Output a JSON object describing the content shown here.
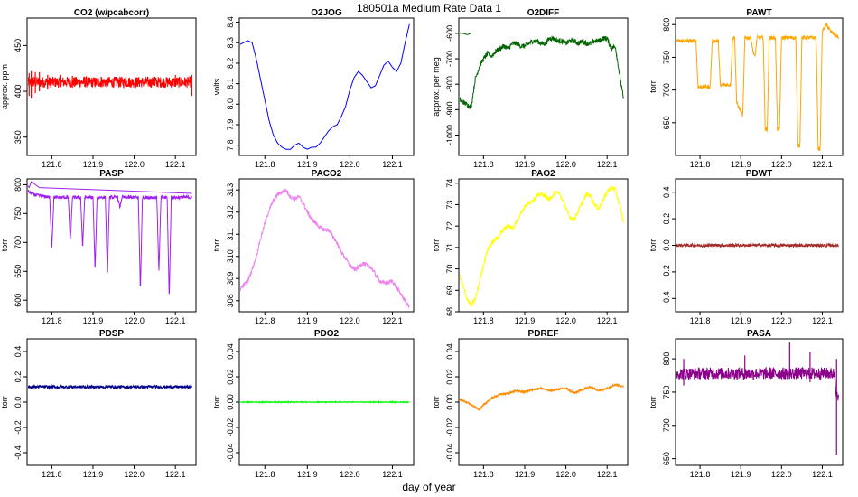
{
  "page": {
    "title": "180501a   Medium Rate Data 1",
    "xlabel": "day of year"
  },
  "chart_data": [
    {
      "type": "line",
      "title": "CO2 (w/pcabcorr)",
      "ylabel": "approx. ppm",
      "color": "#ff0000",
      "xlim": [
        121.74,
        122.15
      ],
      "ylim": [
        330,
        480
      ],
      "yticks": [
        350,
        400,
        450
      ],
      "yfmt": 0,
      "xticks": [
        121.8,
        121.9,
        122.0,
        122.1
      ],
      "x": [
        121.74,
        122.14
      ],
      "y": [
        410,
        410
      ],
      "noise": 6,
      "spikes": [
        [
          121.745,
          395,
          420
        ],
        [
          121.75,
          392,
          422
        ],
        [
          121.76,
          398,
          421
        ],
        [
          121.77,
          400,
          421
        ],
        [
          121.79,
          402,
          418
        ],
        [
          121.82,
          405,
          418
        ],
        [
          121.85,
          404,
          417
        ],
        [
          121.88,
          405,
          416
        ],
        [
          121.92,
          406,
          416
        ],
        [
          121.98,
          405,
          416
        ],
        [
          122.05,
          406,
          416
        ],
        [
          122.1,
          405,
          418
        ],
        [
          122.14,
          395,
          418
        ]
      ]
    },
    {
      "type": "line",
      "title": "O2JOG",
      "ylabel": "volts",
      "color": "#0000ff",
      "xlim": [
        121.74,
        122.15
      ],
      "ylim": [
        7.75,
        8.42
      ],
      "yticks": [
        7.8,
        7.9,
        8.0,
        8.1,
        8.2,
        8.3,
        8.4
      ],
      "yfmt": 1,
      "xticks": [
        121.8,
        121.9,
        122.0,
        122.1
      ],
      "x": [
        121.74,
        121.75,
        121.76,
        121.77,
        121.78,
        121.79,
        121.8,
        121.81,
        121.82,
        121.83,
        121.84,
        121.85,
        121.86,
        121.87,
        121.88,
        121.89,
        121.9,
        121.91,
        121.92,
        121.93,
        121.94,
        121.95,
        121.96,
        121.97,
        121.98,
        121.99,
        122.0,
        122.01,
        122.02,
        122.03,
        122.04,
        122.05,
        122.06,
        122.07,
        122.08,
        122.09,
        122.1,
        122.11,
        122.12,
        122.13,
        122.14
      ],
      "y": [
        8.29,
        8.3,
        8.31,
        8.3,
        8.22,
        8.12,
        8.02,
        7.92,
        7.85,
        7.81,
        7.79,
        7.78,
        7.78,
        7.8,
        7.81,
        7.79,
        7.78,
        7.79,
        7.79,
        7.81,
        7.84,
        7.87,
        7.89,
        7.9,
        7.94,
        7.99,
        8.07,
        8.13,
        8.16,
        8.14,
        8.11,
        8.08,
        8.09,
        8.14,
        8.19,
        8.21,
        8.18,
        8.16,
        8.2,
        8.3,
        8.39
      ],
      "noise": 0
    },
    {
      "type": "line",
      "title": "O2DIFF",
      "ylabel": "approx. per meg",
      "color": "#006400",
      "xlim": [
        121.74,
        122.15
      ],
      "ylim": [
        -1080,
        -540
      ],
      "yticks": [
        -1000,
        -900,
        -800,
        -700,
        -600
      ],
      "yfmt": 0,
      "xticks": [
        121.8,
        121.9,
        122.0,
        122.1
      ],
      "x": [
        121.74,
        121.75,
        121.76,
        121.77,
        121.78,
        121.79,
        121.8,
        121.81,
        121.82,
        121.83,
        121.84,
        121.85,
        121.86,
        121.87,
        121.88,
        121.89,
        121.9,
        121.91,
        121.92,
        121.93,
        121.94,
        121.95,
        121.96,
        121.97,
        121.98,
        121.99,
        122.0,
        122.01,
        122.02,
        122.03,
        122.04,
        122.05,
        122.06,
        122.07,
        122.08,
        122.09,
        122.1,
        122.11,
        122.12,
        122.13,
        122.14
      ],
      "y": [
        -860,
        -870,
        -880,
        -890,
        -780,
        -730,
        -700,
        -680,
        -690,
        -670,
        -660,
        -650,
        -660,
        -640,
        -640,
        -650,
        -650,
        -640,
        -630,
        -630,
        -640,
        -640,
        -620,
        -620,
        -630,
        -630,
        -640,
        -630,
        -630,
        -640,
        -630,
        -640,
        -640,
        -630,
        -630,
        -620,
        -620,
        -660,
        -650,
        -760,
        -860
      ],
      "noise": 10,
      "extra": [
        [
          121.74,
          -600
        ],
        [
          121.75,
          -600
        ],
        [
          121.76,
          -605
        ],
        [
          121.77,
          -600
        ]
      ]
    },
    {
      "type": "line",
      "title": "PAWT",
      "ylabel": "torr",
      "color": "#ffa500",
      "xlim": [
        121.74,
        122.15
      ],
      "ylim": [
        600,
        810
      ],
      "yticks": [
        650,
        700,
        750,
        800
      ],
      "yfmt": 0,
      "xticks": [
        121.8,
        121.9,
        122.0,
        122.1
      ],
      "x": [
        121.74,
        121.765,
        121.77,
        121.79,
        121.795,
        121.82,
        121.825,
        121.83,
        121.845,
        121.85,
        121.855,
        121.875,
        121.88,
        121.885,
        121.89,
        121.9,
        121.905,
        121.91,
        121.925,
        121.93,
        121.935,
        121.94,
        121.955,
        121.96,
        121.965,
        121.97,
        121.985,
        121.99,
        121.995,
        122.0,
        122.035,
        122.04,
        122.045,
        122.05,
        122.085,
        122.09,
        122.095,
        122.1,
        122.11,
        122.12,
        122.13,
        122.14
      ],
      "y": [
        775,
        775,
        775,
        775,
        705,
        705,
        705,
        775,
        775,
        705,
        708,
        708,
        780,
        780,
        680,
        668,
        660,
        780,
        780,
        760,
        750,
        780,
        780,
        640,
        640,
        780,
        780,
        640,
        640,
        780,
        780,
        615,
        615,
        780,
        780,
        610,
        610,
        790,
        800,
        790,
        785,
        780
      ],
      "noise": 3
    },
    {
      "type": "line",
      "title": "PASP",
      "ylabel": "torr",
      "color": "#a020f0",
      "xlim": [
        121.74,
        122.15
      ],
      "ylim": [
        580,
        810
      ],
      "yticks": [
        600,
        650,
        700,
        750,
        800
      ],
      "yfmt": 0,
      "xticks": [
        121.8,
        121.9,
        122.0,
        122.1
      ],
      "x": [
        121.74,
        121.75,
        121.76,
        121.78,
        121.795,
        121.8,
        121.805,
        121.84,
        121.845,
        121.85,
        121.87,
        121.875,
        121.88,
        121.9,
        121.905,
        121.91,
        121.93,
        121.935,
        121.94,
        121.96,
        121.965,
        121.97,
        122.01,
        122.015,
        122.02,
        122.055,
        122.06,
        122.065,
        122.08,
        122.085,
        122.09,
        122.13,
        122.14
      ],
      "y": [
        790,
        785,
        782,
        780,
        778,
        690,
        778,
        778,
        700,
        778,
        778,
        690,
        778,
        778,
        650,
        778,
        778,
        640,
        778,
        778,
        760,
        778,
        778,
        615,
        778,
        778,
        650,
        778,
        778,
        600,
        778,
        778,
        778
      ],
      "noise": 3,
      "extra": [
        [
          121.74,
          800
        ],
        [
          121.745,
          795
        ],
        [
          121.75,
          805
        ],
        [
          121.76,
          800
        ],
        [
          121.77,
          795
        ],
        [
          122.14,
          785
        ]
      ]
    },
    {
      "type": "line",
      "title": "PACO2",
      "ylabel": "torr",
      "color": "#ee82ee",
      "xlim": [
        121.74,
        122.15
      ],
      "ylim": [
        307.5,
        313.5
      ],
      "yticks": [
        308,
        309,
        310,
        311,
        312,
        313
      ],
      "yfmt": 0,
      "xticks": [
        121.8,
        121.9,
        122.0,
        122.1
      ],
      "x": [
        121.74,
        121.75,
        121.76,
        121.77,
        121.78,
        121.79,
        121.8,
        121.81,
        121.82,
        121.83,
        121.84,
        121.85,
        121.86,
        121.87,
        121.88,
        121.89,
        121.9,
        121.91,
        121.92,
        121.93,
        121.94,
        121.95,
        121.96,
        121.97,
        121.98,
        121.99,
        122.0,
        122.01,
        122.02,
        122.03,
        122.04,
        122.05,
        122.06,
        122.07,
        122.08,
        122.09,
        122.1,
        122.11,
        122.12,
        122.13,
        122.14
      ],
      "y": [
        308.5,
        308.7,
        308.9,
        309.4,
        310.0,
        310.8,
        311.5,
        312.1,
        312.5,
        312.8,
        312.9,
        313.0,
        312.7,
        312.6,
        312.7,
        312.4,
        312.0,
        311.7,
        311.5,
        311.3,
        311.2,
        311.2,
        310.9,
        310.6,
        310.2,
        309.9,
        309.6,
        309.4,
        309.5,
        309.7,
        309.6,
        309.5,
        309.2,
        308.9,
        308.8,
        308.8,
        308.9,
        308.6,
        308.3,
        308.0,
        307.7
      ],
      "noise": 0.1
    },
    {
      "type": "line",
      "title": "PAO2",
      "ylabel": "torr",
      "color": "#ffff00",
      "xlim": [
        121.74,
        122.15
      ],
      "ylim": [
        68,
        74.2
      ],
      "yticks": [
        68,
        69,
        70,
        71,
        72,
        73,
        74
      ],
      "yfmt": 0,
      "xticks": [
        121.8,
        121.9,
        122.0,
        122.1
      ],
      "x": [
        121.74,
        121.75,
        121.76,
        121.77,
        121.78,
        121.79,
        121.8,
        121.81,
        121.82,
        121.83,
        121.84,
        121.85,
        121.86,
        121.87,
        121.88,
        121.89,
        121.9,
        121.91,
        121.92,
        121.93,
        121.94,
        121.95,
        121.96,
        121.97,
        121.98,
        121.99,
        122.0,
        122.01,
        122.02,
        122.03,
        122.04,
        122.05,
        122.06,
        122.07,
        122.08,
        122.09,
        122.1,
        122.11,
        122.12,
        122.13,
        122.14
      ],
      "y": [
        69.8,
        69.2,
        68.6,
        68.3,
        68.6,
        69.4,
        70.2,
        70.9,
        71.2,
        71.4,
        71.6,
        71.9,
        72.0,
        71.9,
        72.2,
        72.6,
        72.9,
        73.1,
        73.2,
        73.4,
        73.5,
        73.4,
        73.2,
        73.5,
        73.6,
        73.3,
        72.8,
        72.4,
        72.3,
        72.7,
        73.1,
        73.5,
        73.4,
        73.0,
        72.8,
        73.2,
        73.6,
        73.8,
        73.7,
        73.0,
        72.2
      ],
      "noise": 0.1
    },
    {
      "type": "line",
      "title": "PDWT",
      "ylabel": "torr",
      "color": "#a52a2a",
      "xlim": [
        121.74,
        122.15
      ],
      "ylim": [
        -0.5,
        0.5
      ],
      "yticks": [
        -0.4,
        -0.2,
        0.0,
        0.2,
        0.4
      ],
      "yfmt": 1,
      "xticks": [
        121.8,
        121.9,
        122.0,
        122.1
      ],
      "x": [
        121.74,
        122.14
      ],
      "y": [
        0.0,
        0.0
      ],
      "noise": 0.012
    },
    {
      "type": "line",
      "title": "PDSP",
      "ylabel": "torr",
      "color": "#00008b",
      "xlim": [
        121.74,
        122.15
      ],
      "ylim": [
        -0.5,
        0.5
      ],
      "yticks": [
        -0.4,
        -0.2,
        0.0,
        0.2,
        0.4
      ],
      "yfmt": 1,
      "xticks": [
        121.8,
        121.9,
        122.0,
        122.1
      ],
      "x": [
        121.74,
        122.14
      ],
      "y": [
        0.12,
        0.12
      ],
      "noise": 0.012
    },
    {
      "type": "line",
      "title": "PDO2",
      "ylabel": "torr",
      "color": "#00ff00",
      "xlim": [
        121.74,
        122.15
      ],
      "ylim": [
        -0.05,
        0.05
      ],
      "yticks": [
        -0.04,
        -0.02,
        0.0,
        0.02,
        0.04
      ],
      "yfmt": 2,
      "xticks": [
        121.8,
        121.9,
        122.0,
        122.1
      ],
      "x": [
        121.74,
        122.14
      ],
      "y": [
        0.0,
        0.0
      ],
      "noise": 0.0004
    },
    {
      "type": "line",
      "title": "PDREF",
      "ylabel": "torr",
      "color": "#ff8c00",
      "xlim": [
        121.74,
        122.15
      ],
      "ylim": [
        -0.05,
        0.05
      ],
      "yticks": [
        -0.04,
        -0.02,
        0.0,
        0.02,
        0.04
      ],
      "yfmt": 2,
      "xticks": [
        121.8,
        121.9,
        122.0,
        122.1
      ],
      "x": [
        121.74,
        121.76,
        121.78,
        121.79,
        121.8,
        121.82,
        121.84,
        121.86,
        121.88,
        121.9,
        121.92,
        121.94,
        121.96,
        121.98,
        122.0,
        122.02,
        122.04,
        122.06,
        122.08,
        122.1,
        122.12,
        122.14
      ],
      "y": [
        0.002,
        0.0,
        -0.004,
        -0.006,
        -0.002,
        0.003,
        0.006,
        0.007,
        0.009,
        0.008,
        0.01,
        0.011,
        0.009,
        0.01,
        0.011,
        0.007,
        0.01,
        0.012,
        0.009,
        0.011,
        0.014,
        0.012
      ],
      "noise": 0.0008
    },
    {
      "type": "line",
      "title": "PASA",
      "ylabel": "torr",
      "color": "#8b008b",
      "xlim": [
        121.74,
        122.15
      ],
      "ylim": [
        640,
        830
      ],
      "yticks": [
        650,
        700,
        750,
        800
      ],
      "yfmt": 0,
      "xticks": [
        121.8,
        121.9,
        122.0,
        122.1
      ],
      "x": [
        121.74,
        122.13,
        122.135,
        122.14
      ],
      "y": [
        778,
        778,
        745,
        738
      ],
      "noise": 9,
      "spikes": [
        [
          121.76,
          760,
          800
        ],
        [
          121.91,
          770,
          805
        ],
        [
          122.02,
          770,
          825
        ],
        [
          122.07,
          765,
          810
        ],
        [
          122.135,
          655,
          800
        ]
      ]
    }
  ]
}
